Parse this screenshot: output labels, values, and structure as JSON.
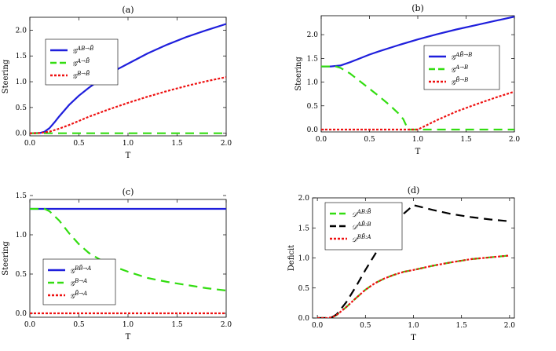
{
  "chart_data": [
    {
      "panel": "a",
      "type": "line",
      "title": "(a)",
      "xlabel": "T",
      "ylabel": "Steering",
      "xlim": [
        0,
        2
      ],
      "ylim": [
        -0.05,
        2.25
      ],
      "xticks": [
        "0.0",
        "0.5",
        "1.0",
        "1.5",
        "2.0"
      ],
      "xtick_values": [
        0,
        0.5,
        1,
        1.5,
        2
      ],
      "yticks": [
        "0.0",
        "0.5",
        "1.0",
        "1.5",
        "2.0"
      ],
      "ytick_values": [
        0,
        0.5,
        1,
        1.5,
        2
      ],
      "legend_position": "upper-left",
      "series": [
        {
          "name": "𝒢^{AB→B̄}",
          "label_main": "𝒢",
          "label_sup": "AB→B̄",
          "color": "#1f1fdc",
          "style": "solid",
          "x": [
            0,
            0.1,
            0.15,
            0.2,
            0.25,
            0.3,
            0.4,
            0.5,
            0.6,
            0.7,
            0.8,
            0.9,
            1.0,
            1.2,
            1.4,
            1.6,
            1.8,
            2.0
          ],
          "y": [
            0,
            0.005,
            0.03,
            0.1,
            0.21,
            0.33,
            0.55,
            0.73,
            0.88,
            1.02,
            1.14,
            1.25,
            1.35,
            1.55,
            1.72,
            1.87,
            2.0,
            2.12
          ]
        },
        {
          "name": "𝒢^{A→B̄}",
          "label_main": "𝒢",
          "label_sup": "A→B̄",
          "color": "#33dd11",
          "style": "dash",
          "x": [
            0,
            2.0
          ],
          "y": [
            0,
            0
          ]
        },
        {
          "name": "𝒢^{B→B̄}",
          "label_main": "𝒢",
          "label_sup": "B→B̄",
          "color": "#ee1111",
          "style": "dot",
          "x": [
            0,
            0.1,
            0.2,
            0.3,
            0.4,
            0.5,
            0.6,
            0.8,
            1.0,
            1.2,
            1.4,
            1.6,
            1.8,
            2.0
          ],
          "y": [
            0,
            0.005,
            0.03,
            0.09,
            0.16,
            0.24,
            0.32,
            0.46,
            0.59,
            0.71,
            0.82,
            0.92,
            1.01,
            1.09
          ]
        }
      ]
    },
    {
      "panel": "b",
      "type": "line",
      "title": "(b)",
      "xlabel": "T",
      "ylabel": "Steering",
      "xlim": [
        0,
        2
      ],
      "ylim": [
        -0.05,
        2.4
      ],
      "xticks": [
        "0.0",
        "0.5",
        "1.0",
        "1.5",
        "2.0"
      ],
      "xtick_values": [
        0,
        0.5,
        1,
        1.5,
        2
      ],
      "yticks": [
        "0.0",
        "0.5",
        "1.0",
        "1.5",
        "2.0"
      ],
      "ytick_values": [
        0,
        0.5,
        1,
        1.5,
        2
      ],
      "legend_position": "right-middle",
      "series": [
        {
          "name": "𝒢^{AB̄→B}",
          "label_main": "𝒢",
          "label_sup": "AB̄→B",
          "color": "#1f1fdc",
          "style": "solid",
          "x": [
            0,
            0.1,
            0.2,
            0.3,
            0.4,
            0.5,
            0.6,
            0.8,
            1.0,
            1.2,
            1.4,
            1.6,
            1.8,
            2.0
          ],
          "y": [
            1.33,
            1.33,
            1.35,
            1.42,
            1.5,
            1.58,
            1.65,
            1.78,
            1.9,
            2.01,
            2.11,
            2.2,
            2.29,
            2.38
          ]
        },
        {
          "name": "𝒢^{A→B}",
          "label_main": "𝒢",
          "label_sup": "A→B",
          "color": "#33dd11",
          "style": "dash",
          "x": [
            0,
            0.15,
            0.2,
            0.3,
            0.4,
            0.5,
            0.6,
            0.7,
            0.8,
            0.85,
            0.9,
            1.0,
            1.5,
            2.0
          ],
          "y": [
            1.33,
            1.33,
            1.3,
            1.18,
            1.02,
            0.86,
            0.7,
            0.53,
            0.34,
            0.22,
            0,
            0,
            0,
            0
          ]
        },
        {
          "name": "𝒢^{B̄→B}",
          "label_main": "𝒢",
          "label_sup": "B̄→B",
          "color": "#ee1111",
          "style": "dot",
          "x": [
            0,
            1.0,
            1.2,
            1.4,
            1.6,
            1.8,
            2.0
          ],
          "y": [
            0,
            0,
            0.2,
            0.38,
            0.53,
            0.67,
            0.8
          ]
        }
      ]
    },
    {
      "panel": "c",
      "type": "line",
      "title": "(c)",
      "xlabel": "T",
      "ylabel": "Steering",
      "xlim": [
        0,
        2
      ],
      "ylim": [
        -0.05,
        1.45
      ],
      "xticks": [
        "0.0",
        "0.5",
        "1.0",
        "1.5",
        "2.0"
      ],
      "xtick_values": [
        0,
        0.5,
        1,
        1.5,
        2
      ],
      "yticks": [
        "0.0",
        "0.5",
        "1.0",
        "1.5"
      ],
      "ytick_values": [
        0,
        0.5,
        1,
        1.5
      ],
      "legend_position": "left-lower",
      "series": [
        {
          "name": "𝒢^{BB̄→A}",
          "label_main": "𝒢",
          "label_sup": "BB̄→A",
          "color": "#1f1fdc",
          "style": "solid",
          "x": [
            0,
            2.0
          ],
          "y": [
            1.33,
            1.33
          ]
        },
        {
          "name": "𝒢^{B→A}",
          "label_main": "𝒢",
          "label_sup": "B→A",
          "color": "#33dd11",
          "style": "dash",
          "x": [
            0,
            0.15,
            0.2,
            0.3,
            0.4,
            0.5,
            0.6,
            0.8,
            1.0,
            1.2,
            1.4,
            1.6,
            1.8,
            2.0
          ],
          "y": [
            1.33,
            1.33,
            1.3,
            1.18,
            1.02,
            0.88,
            0.77,
            0.62,
            0.53,
            0.45,
            0.4,
            0.36,
            0.32,
            0.29
          ]
        },
        {
          "name": "𝒢^{B̄→A}",
          "label_main": "𝒢",
          "label_sup": "B̄→A",
          "color": "#ee1111",
          "style": "dot",
          "x": [
            0,
            2.0
          ],
          "y": [
            0,
            0
          ]
        }
      ]
    },
    {
      "panel": "d",
      "type": "line",
      "title": "(d)",
      "xlabel": "T",
      "ylabel": "Deficit",
      "xlim": [
        -0.05,
        2.05
      ],
      "ylim": [
        0,
        2.0
      ],
      "xticks": [
        "0.0",
        "0.5",
        "1.0",
        "1.5",
        "2.0"
      ],
      "xtick_values": [
        0,
        0.5,
        1,
        1.5,
        2
      ],
      "yticks": [
        "0.0",
        "0.5",
        "1.0",
        "1.5",
        "2.0"
      ],
      "ytick_values": [
        0,
        0.5,
        1,
        1.5,
        2
      ],
      "legend_position": "upper-left",
      "series": [
        {
          "name": "𝒟^{AB:B̄}",
          "label_main": "𝒟",
          "label_sup": "AB:B̄",
          "color": "#33dd11",
          "style": "dash",
          "x": [
            0,
            0.1,
            0.15,
            0.2,
            0.3,
            0.4,
            0.5,
            0.6,
            0.7,
            0.8,
            0.9,
            1.0,
            1.2,
            1.4,
            1.6,
            1.8,
            2.0
          ],
          "y": [
            0,
            0,
            0.01,
            0.05,
            0.18,
            0.33,
            0.47,
            0.58,
            0.66,
            0.72,
            0.77,
            0.8,
            0.87,
            0.93,
            0.98,
            1.01,
            1.04
          ]
        },
        {
          "name": "𝒟^{AB̄:B}",
          "label_main": "𝒟",
          "label_sup": "AB̄:B",
          "color": "#000000",
          "style": "dash",
          "x": [
            0,
            0.1,
            0.15,
            0.2,
            0.3,
            0.4,
            0.5,
            0.6,
            0.7,
            0.8,
            0.9,
            1.0,
            1.2,
            1.4,
            1.6,
            1.8,
            2.0
          ],
          "y": [
            0,
            0,
            0.01,
            0.06,
            0.26,
            0.52,
            0.8,
            1.06,
            1.32,
            1.55,
            1.74,
            1.88,
            1.8,
            1.73,
            1.68,
            1.64,
            1.61
          ]
        },
        {
          "name": "𝒟^{BB̄:A}",
          "label_main": "𝒟",
          "label_sup": "BB̄:A",
          "color": "#ee1111",
          "style": "dot",
          "x": [
            0,
            0.1,
            0.15,
            0.2,
            0.3,
            0.4,
            0.5,
            0.6,
            0.7,
            0.8,
            0.9,
            1.0,
            1.2,
            1.4,
            1.6,
            1.8,
            2.0
          ],
          "y": [
            0,
            0,
            0.01,
            0.05,
            0.18,
            0.33,
            0.47,
            0.58,
            0.66,
            0.72,
            0.77,
            0.8,
            0.87,
            0.93,
            0.98,
            1.01,
            1.04
          ]
        }
      ]
    }
  ]
}
